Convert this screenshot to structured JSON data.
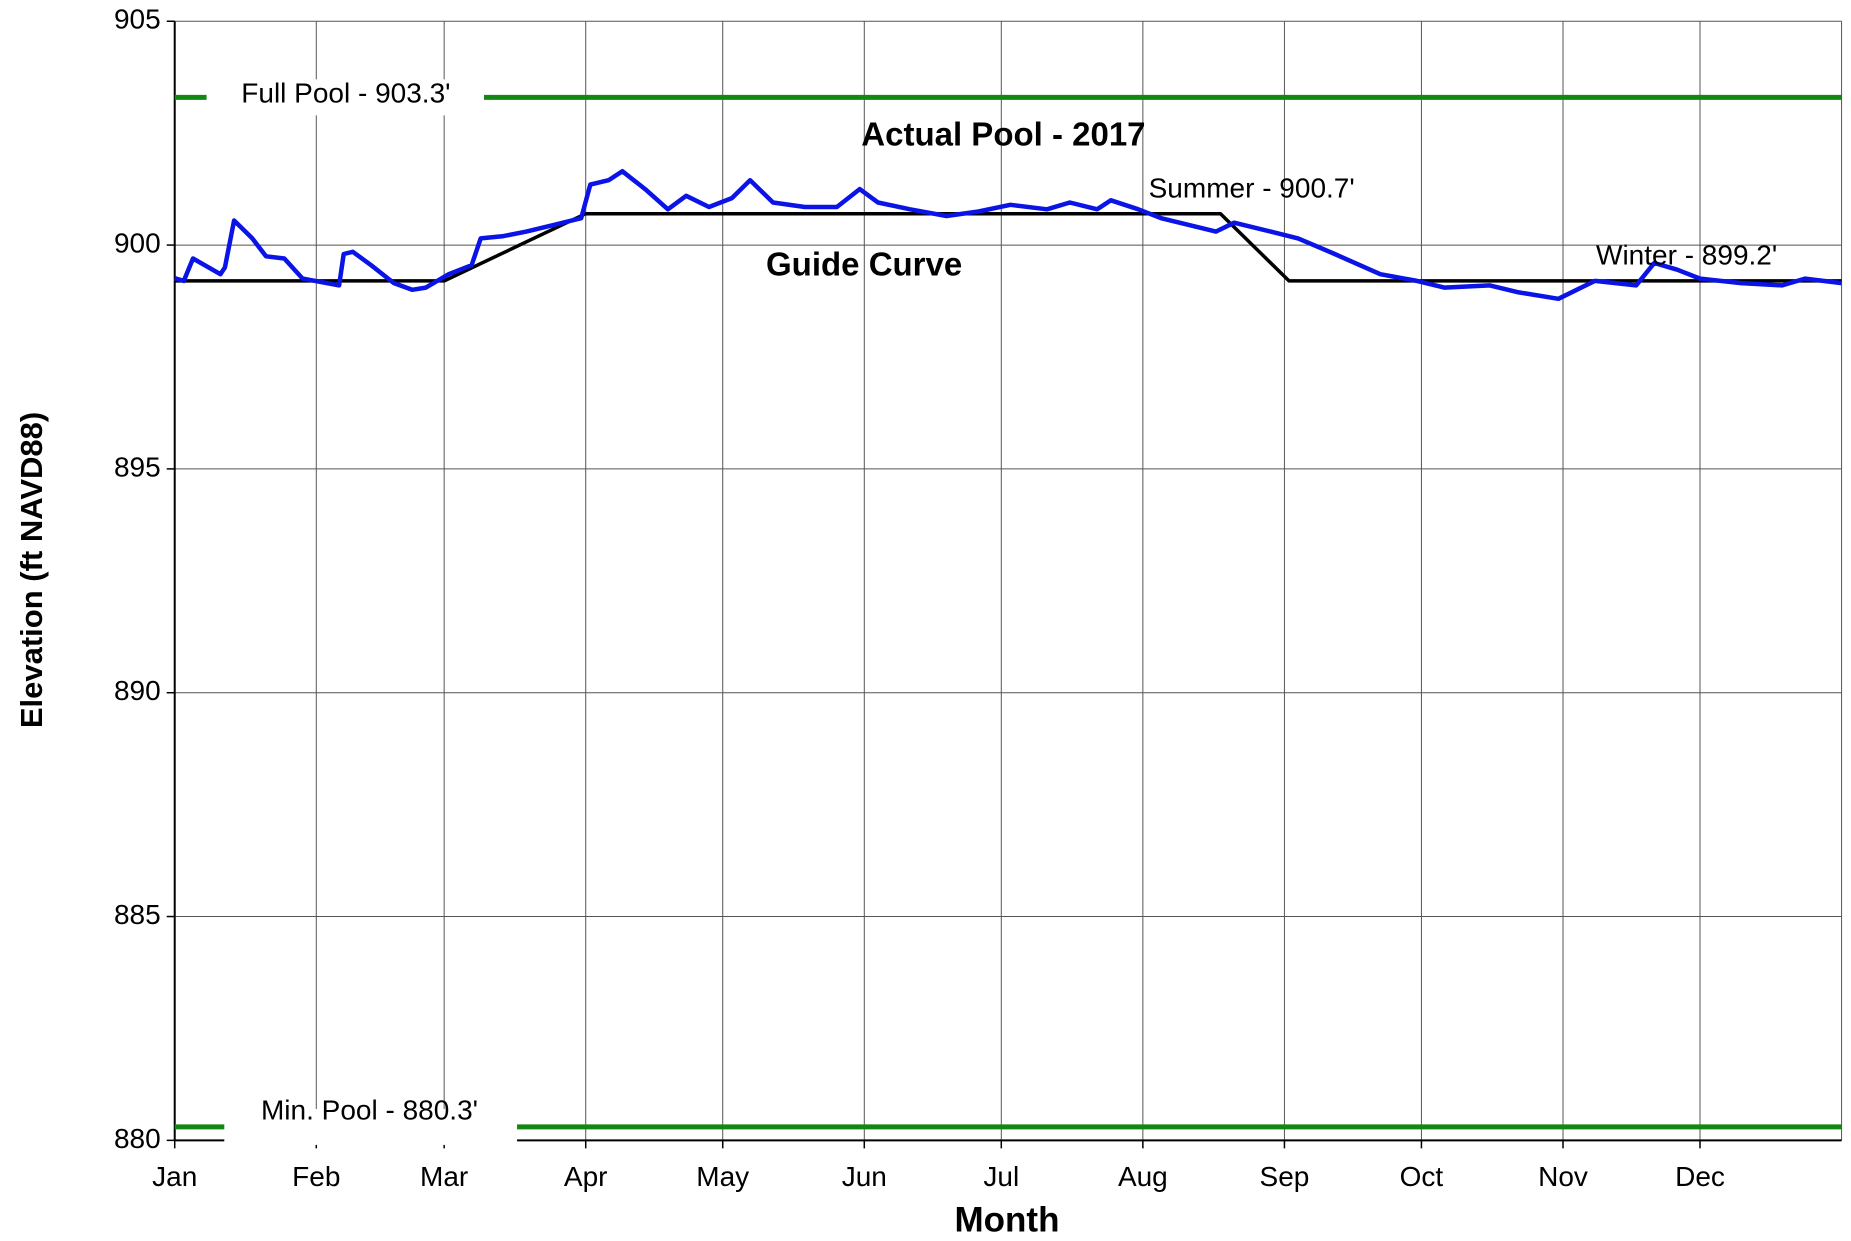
{
  "chart_data": {
    "type": "line",
    "xlabel": "Month",
    "ylabel": "Elevation (ft NAVD88)",
    "xlim": [
      0,
      365
    ],
    "xticks": [
      {
        "value": 0,
        "label": "Jan"
      },
      {
        "value": 31,
        "label": "Feb"
      },
      {
        "value": 59,
        "label": "Mar"
      },
      {
        "value": 90,
        "label": "Apr"
      },
      {
        "value": 120,
        "label": "May"
      },
      {
        "value": 151,
        "label": "Jun"
      },
      {
        "value": 181,
        "label": "Jul"
      },
      {
        "value": 212,
        "label": "Aug"
      },
      {
        "value": 243,
        "label": "Sep"
      },
      {
        "value": 273,
        "label": "Oct"
      },
      {
        "value": 304,
        "label": "Nov"
      },
      {
        "value": 334,
        "label": "Dec"
      }
    ],
    "ylim": [
      880,
      905
    ],
    "yticks": [
      880,
      885,
      890,
      895,
      900,
      905
    ],
    "grid": true,
    "series": [
      {
        "name": "Actual Pool - 2017",
        "color": "#0a14e6",
        "x": [
          0,
          2,
          4,
          10,
          11,
          13,
          17,
          20,
          24,
          28,
          36,
          37,
          39,
          43,
          48,
          52,
          55,
          60,
          65,
          67,
          72,
          77,
          83,
          89,
          91,
          95,
          98,
          103,
          108,
          112,
          117,
          122,
          126,
          131,
          138,
          145,
          150,
          154,
          161,
          169,
          176,
          183,
          191,
          196,
          202,
          205,
          211,
          216,
          228,
          232,
          240,
          246,
          254,
          264,
          272,
          278,
          288,
          294,
          303,
          307,
          311,
          320,
          324,
          329,
          334,
          343,
          352,
          357,
          365
        ],
        "values": [
          899.26,
          899.2,
          899.7,
          899.35,
          899.5,
          900.55,
          900.15,
          899.75,
          899.7,
          899.25,
          899.1,
          899.8,
          899.85,
          899.55,
          899.15,
          899.0,
          899.05,
          899.35,
          899.55,
          900.15,
          900.2,
          900.3,
          900.45,
          900.6,
          901.35,
          901.45,
          901.65,
          901.25,
          900.8,
          901.1,
          900.85,
          901.05,
          901.45,
          900.95,
          900.85,
          900.85,
          901.25,
          900.95,
          900.8,
          900.65,
          900.75,
          900.9,
          900.8,
          900.95,
          900.8,
          901.0,
          900.8,
          900.6,
          900.3,
          900.5,
          900.3,
          900.15,
          899.8,
          899.35,
          899.2,
          899.05,
          899.1,
          898.95,
          898.8,
          899.0,
          899.2,
          899.1,
          899.6,
          899.45,
          899.25,
          899.15,
          899.1,
          899.25,
          899.15
        ]
      },
      {
        "name": "Guide Curve",
        "color": "#000000",
        "x": [
          0,
          59,
          90,
          229,
          244,
          365
        ],
        "values": [
          899.2,
          899.2,
          900.7,
          900.7,
          899.2,
          899.2
        ]
      }
    ],
    "reference_lines": [
      {
        "label": "Full Pool - 903.3'",
        "value": 903.3,
        "color": "#118811"
      },
      {
        "label": "Min. Pool - 880.3'",
        "value": 880.3,
        "color": "#118811"
      }
    ],
    "annotations": [
      "Summer - 900.7'",
      "Winter - 899.2'"
    ]
  }
}
